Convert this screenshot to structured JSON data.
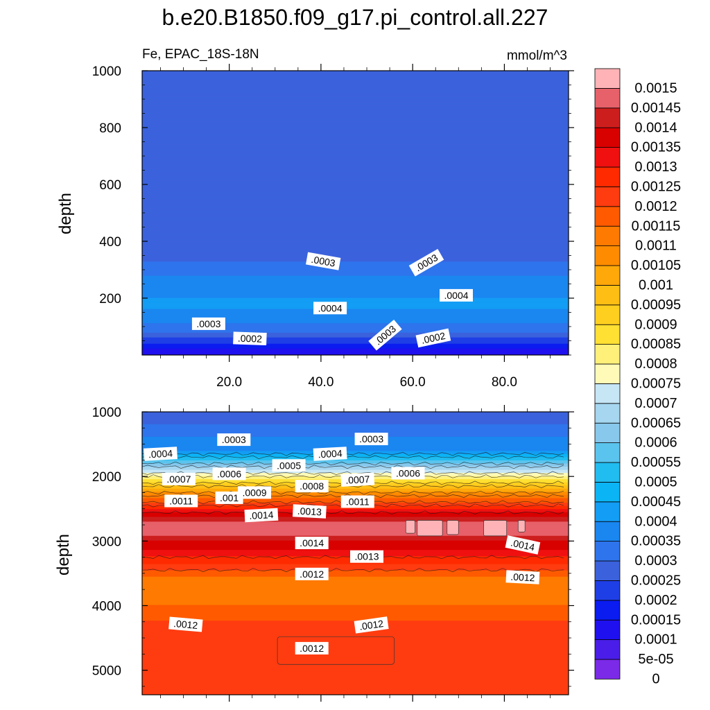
{
  "chart_data": {
    "type": "heatmap",
    "title": "b.e20.B1850.f09_g17.pi_control.all.227",
    "subtitle_left": "Fe, EPAC_18S-18N",
    "units": "mmol/m^3",
    "panels": [
      {
        "name": "upper",
        "ylabel": "depth",
        "ylim": [
          1000,
          0
        ],
        "yticks": [
          "200",
          "400",
          "600",
          "800",
          "1000"
        ],
        "xlim": [
          1,
          94
        ],
        "xticks": [
          "20.0",
          "40.0",
          "60.0",
          "80.0"
        ],
        "profile": [
          {
            "depth": 0,
            "value": 0.0001
          },
          {
            "depth": 20,
            "value": 0.00015
          },
          {
            "depth": 40,
            "value": 0.0002
          },
          {
            "depth": 60,
            "value": 0.00025
          },
          {
            "depth": 80,
            "value": 0.0003
          },
          {
            "depth": 110,
            "value": 0.00035
          },
          {
            "depth": 160,
            "value": 0.0004
          },
          {
            "depth": 200,
            "value": 0.0004
          },
          {
            "depth": 280,
            "value": 0.00035
          },
          {
            "depth": 330,
            "value": 0.0003
          },
          {
            "depth": 400,
            "value": 0.00025
          },
          {
            "depth": 1000,
            "value": 0.00025
          }
        ],
        "contour_labels": [
          {
            "text": ".0003",
            "x": 15.5,
            "depth": 110,
            "angle": 0
          },
          {
            "text": ".0002",
            "x": 24.5,
            "depth": 58,
            "angle": 2
          },
          {
            "text": ".0003",
            "x": 54,
            "depth": 70,
            "angle": -40
          },
          {
            "text": ".0002",
            "x": 64.5,
            "depth": 60,
            "angle": -12
          },
          {
            "text": ".0004",
            "x": 42,
            "depth": 165,
            "angle": 0
          },
          {
            "text": ".0004",
            "x": 69.5,
            "depth": 210,
            "angle": 0
          },
          {
            "text": ".0003",
            "x": 40.5,
            "depth": 330,
            "angle": 10
          },
          {
            "text": ".0003",
            "x": 63,
            "depth": 325,
            "angle": -30
          }
        ]
      },
      {
        "name": "lower",
        "ylabel": "depth",
        "ylim": [
          1000,
          5380
        ],
        "yticks": [
          "1000",
          "2000",
          "3000",
          "4000",
          "5000"
        ],
        "xlim": [
          1,
          94
        ],
        "xticks": [],
        "profile": [
          {
            "depth": 1000,
            "value": 0.00025
          },
          {
            "depth": 1200,
            "value": 0.0003
          },
          {
            "depth": 1400,
            "value": 0.00035
          },
          {
            "depth": 1600,
            "value": 0.0004
          },
          {
            "depth": 1750,
            "value": 0.00055
          },
          {
            "depth": 1900,
            "value": 0.0007
          },
          {
            "depth": 2050,
            "value": 0.00085
          },
          {
            "depth": 2200,
            "value": 0.001
          },
          {
            "depth": 2350,
            "value": 0.00115
          },
          {
            "depth": 2500,
            "value": 0.0013
          },
          {
            "depth": 2620,
            "value": 0.0014
          },
          {
            "depth": 2700,
            "value": 0.00145
          },
          {
            "depth": 2920,
            "value": 0.00145
          },
          {
            "depth": 3000,
            "value": 0.0014
          },
          {
            "depth": 3150,
            "value": 0.00135
          },
          {
            "depth": 3350,
            "value": 0.00125
          },
          {
            "depth": 3550,
            "value": 0.00115
          },
          {
            "depth": 3800,
            "value": 0.0011
          },
          {
            "depth": 4000,
            "value": 0.00115
          },
          {
            "depth": 4230,
            "value": 0.0012
          },
          {
            "depth": 5380,
            "value": 0.0012
          }
        ],
        "contour_labels": [
          {
            "text": ".0003",
            "x": 21,
            "depth": 1430,
            "angle": 0
          },
          {
            "text": ".0003",
            "x": 51,
            "depth": 1420,
            "angle": 0
          },
          {
            "text": ".0004",
            "x": 5,
            "depth": 1650,
            "angle": -3
          },
          {
            "text": ".0004",
            "x": 42,
            "depth": 1650,
            "angle": -3
          },
          {
            "text": ".0005",
            "x": 33,
            "depth": 1830,
            "angle": 0
          },
          {
            "text": ".0006",
            "x": 20,
            "depth": 1960,
            "angle": 0
          },
          {
            "text": ".0006",
            "x": 59,
            "depth": 1950,
            "angle": 0
          },
          {
            "text": ".0007",
            "x": 9,
            "depth": 2040,
            "angle": 0
          },
          {
            "text": ".0007",
            "x": 48,
            "depth": 2050,
            "angle": -3
          },
          {
            "text": ".0008",
            "x": 38,
            "depth": 2150,
            "angle": 0
          },
          {
            "text": ".0009",
            "x": 25.5,
            "depth": 2250,
            "angle": 0
          },
          {
            "text": ".001",
            "x": 20,
            "depth": 2330,
            "angle": 0
          },
          {
            "text": ".0011",
            "x": 9.5,
            "depth": 2380,
            "angle": 0
          },
          {
            "text": ".0011",
            "x": 48,
            "depth": 2390,
            "angle": 0
          },
          {
            "text": ".0014",
            "x": 27,
            "depth": 2600,
            "angle": -3
          },
          {
            "text": ".0013",
            "x": 37.5,
            "depth": 2540,
            "angle": 3
          },
          {
            "text": ".0014",
            "x": 38,
            "depth": 3030,
            "angle": 0
          },
          {
            "text": ".0014",
            "x": 84,
            "depth": 3060,
            "angle": 12
          },
          {
            "text": ".0013",
            "x": 50,
            "depth": 3240,
            "angle": 0
          },
          {
            "text": ".0012",
            "x": 38,
            "depth": 3510,
            "angle": 0
          },
          {
            "text": ".0012",
            "x": 84,
            "depth": 3560,
            "angle": 3
          },
          {
            "text": ".0012",
            "x": 10.5,
            "depth": 4290,
            "angle": 5
          },
          {
            "text": ".0012",
            "x": 51,
            "depth": 4300,
            "angle": -8
          },
          {
            "text": ".0012",
            "x": 38,
            "depth": 4660,
            "angle": 0
          }
        ],
        "maxima_patches": [
          {
            "x": [
              58.5,
              60.5
            ],
            "depth": [
              2680,
              2880
            ],
            "value": 0.0015
          },
          {
            "x": [
              61,
              66.5
            ],
            "depth": [
              2680,
              2920
            ],
            "value": 0.0015
          },
          {
            "x": [
              67.5,
              70
            ],
            "depth": [
              2680,
              2900
            ],
            "value": 0.0015
          },
          {
            "x": [
              75.5,
              80.5
            ],
            "depth": [
              2680,
              2920
            ],
            "value": 0.0015
          },
          {
            "x": [
              83,
              84.5
            ],
            "depth": [
              2680,
              2860
            ],
            "value": 0.0015
          }
        ],
        "minima_patch": {
          "x": [
            30.5,
            56
          ],
          "depth": [
            4480,
            4910
          ],
          "value": 0.0012
        }
      }
    ],
    "colorbar": {
      "levels": [
        "0",
        "5e-05",
        "0.0001",
        "0.00015",
        "0.0002",
        "0.00025",
        "0.0003",
        "0.00035",
        "0.0004",
        "0.00045",
        "0.0005",
        "0.00055",
        "0.0006",
        "0.00065",
        "0.0007",
        "0.00075",
        "0.0008",
        "0.00085",
        "0.0009",
        "0.00095",
        "0.001",
        "0.00105",
        "0.0011",
        "0.00115",
        "0.0012",
        "0.00125",
        "0.0013",
        "0.00135",
        "0.0014",
        "0.00145",
        "0.0015"
      ],
      "colors": [
        "#7b2ae8",
        "#4a1ee8",
        "#1f10ef",
        "#0a1cf0",
        "#1f3fe6",
        "#3b62dc",
        "#2e74ec",
        "#1a86f0",
        "#139df5",
        "#0bb4f5",
        "#21bcf0",
        "#5ac4ee",
        "#88c8ec",
        "#a6d6f0",
        "#c6e6f6",
        "#fffab8",
        "#fff07a",
        "#ffe033",
        "#ffcf1f",
        "#ffbe14",
        "#ffa80a",
        "#ff8c00",
        "#ff7a00",
        "#ff5a00",
        "#ff3c10",
        "#ff2a00",
        "#f01010",
        "#d90000",
        "#cd1e1e",
        "#e7616a",
        "#ffb3b6"
      ]
    }
  }
}
